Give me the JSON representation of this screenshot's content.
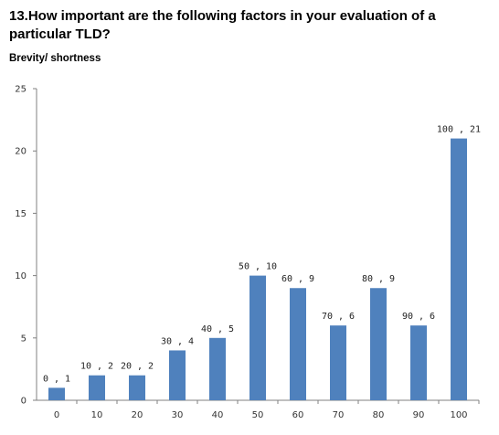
{
  "question": "13.How important are the following factors in your evaluation of a particular TLD?",
  "subtitle": "Brevity/ shortness",
  "colors": {
    "bar": "#4F81BD",
    "axis": "#808080",
    "text": "#000000"
  },
  "chart_data": {
    "type": "bar",
    "title": "Brevity/ shortness",
    "xlabel": "",
    "ylabel": "",
    "categories": [
      "0",
      "10",
      "20",
      "30",
      "40",
      "50",
      "60",
      "70",
      "80",
      "90",
      "100"
    ],
    "values": [
      1,
      2,
      2,
      4,
      5,
      10,
      9,
      6,
      9,
      6,
      21
    ],
    "data_labels": [
      "0 , 1",
      "10 , 2",
      "20 , 2",
      "30 , 4",
      "40 , 5",
      "50 , 10",
      "60 , 9",
      "70 , 6",
      "80 , 9",
      "90 , 6",
      "100 , 21"
    ],
    "ylim": [
      0,
      25
    ],
    "yticks": [
      0,
      5,
      10,
      15,
      20,
      25
    ],
    "grid": false,
    "legend": "none"
  }
}
